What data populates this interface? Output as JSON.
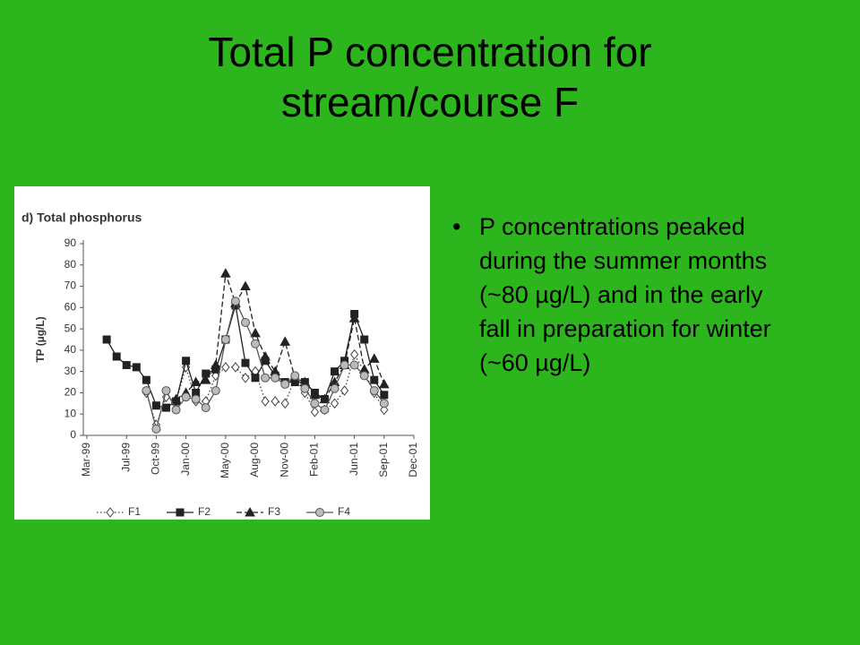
{
  "title": "Total P concentration for stream/course F",
  "bullets": [
    "P concentrations peaked during the summer months (~80 µg/L) and in the early fall in preparation for winter (~60 µg/L)"
  ],
  "chart_data": {
    "type": "line",
    "title": "d) Total phosphorus",
    "y_label": "TP (µg/L)",
    "x": [
      "1999-05",
      "1999-06",
      "1999-07",
      "1999-08",
      "1999-09",
      "1999-10",
      "1999-11",
      "1999-12",
      "2000-01",
      "2000-02",
      "2000-03",
      "2000-04",
      "2000-05",
      "2000-06",
      "2000-07",
      "2000-08",
      "2000-09",
      "2000-10",
      "2000-11",
      "2000-12",
      "2001-01",
      "2001-02",
      "2001-03",
      "2001-04",
      "2001-05",
      "2001-06",
      "2001-07",
      "2001-08",
      "2001-09"
    ],
    "series": [
      {
        "name": "F1",
        "color": "#444444",
        "marker": "diamond",
        "dash": "dotted",
        "values": [
          null,
          null,
          null,
          null,
          20,
          5,
          18,
          16,
          32,
          16,
          16,
          28,
          32,
          32,
          27,
          30,
          16,
          16,
          15,
          27,
          20,
          11,
          12,
          15,
          21,
          38,
          30,
          20,
          12
        ]
      },
      {
        "name": "F2",
        "color": "#222222",
        "marker": "square",
        "dash": "solid",
        "values": [
          45,
          37,
          33,
          32,
          26,
          14,
          13,
          16,
          35,
          20,
          29,
          31,
          45,
          61,
          34,
          27,
          35,
          28,
          25,
          25,
          25,
          20,
          17,
          30,
          35,
          57,
          45,
          26,
          19
        ]
      },
      {
        "name": "F3",
        "color": "#222222",
        "marker": "triangle",
        "dash": "dashed",
        "values": [
          null,
          null,
          null,
          null,
          null,
          null,
          null,
          17,
          20,
          25,
          26,
          33,
          76,
          62,
          70,
          48,
          37,
          30,
          44,
          27,
          25,
          19,
          17,
          25,
          33,
          55,
          31,
          36,
          24
        ]
      },
      {
        "name": "F4",
        "color": "#555555",
        "marker": "circle",
        "dash": "solid-thin",
        "values": [
          null,
          null,
          null,
          null,
          21,
          3,
          21,
          12,
          18,
          17,
          13,
          21,
          45,
          63,
          53,
          43,
          27,
          27,
          24,
          28,
          22,
          15,
          12,
          22,
          33,
          33,
          28,
          21,
          15
        ]
      }
    ],
    "xlim": [
      "1999-03",
      "2001-12"
    ],
    "xticks": [
      {
        "value": "1999-03",
        "label": "Mar-99"
      },
      {
        "value": "1999-07",
        "label": "Jul-99"
      },
      {
        "value": "1999-10",
        "label": "Oct-99"
      },
      {
        "value": "2000-01",
        "label": "Jan-00"
      },
      {
        "value": "2000-05",
        "label": "May-00"
      },
      {
        "value": "2000-08",
        "label": "Aug-00"
      },
      {
        "value": "2000-11",
        "label": "Nov-00"
      },
      {
        "value": "2001-02",
        "label": "Feb-01"
      },
      {
        "value": "2001-06",
        "label": "Jun-01"
      },
      {
        "value": "2001-09",
        "label": "Sep-01"
      },
      {
        "value": "2001-12",
        "label": "Dec-01"
      }
    ],
    "ylim": [
      0,
      90
    ],
    "yticks": [
      0,
      10,
      20,
      30,
      40,
      50,
      60,
      70,
      80,
      90
    ]
  }
}
